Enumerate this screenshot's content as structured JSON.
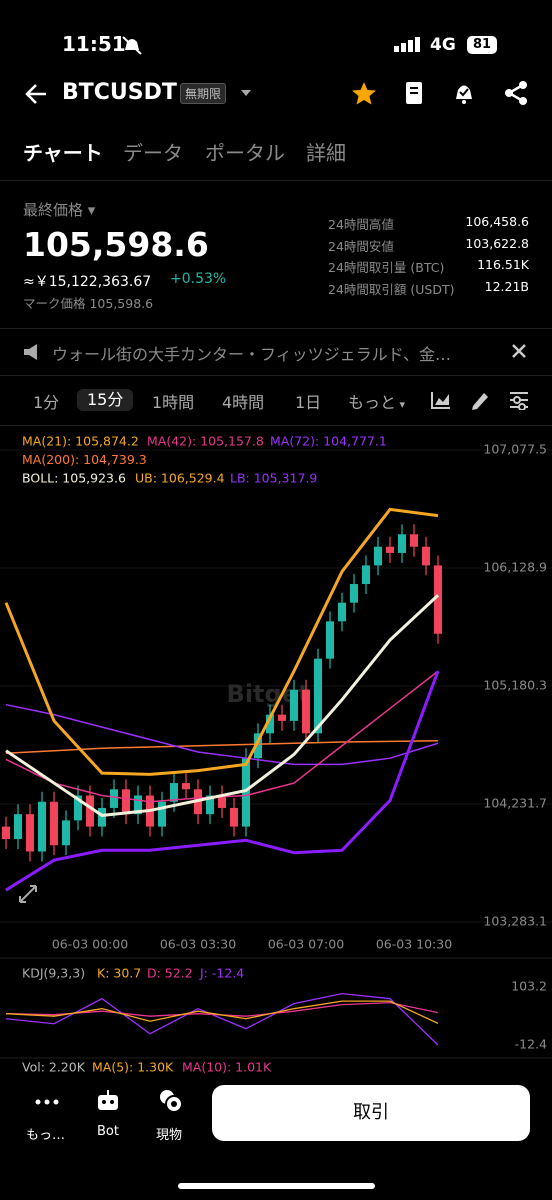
{
  "status": {
    "time": "11:51",
    "network": "4G",
    "battery": "81"
  },
  "header": {
    "symbol": "BTCUSDT",
    "badge": "無期限"
  },
  "tabs": [
    "チャート",
    "データ",
    "ポータル",
    "詳細"
  ],
  "price": {
    "label": "最終価格",
    "last": "105,598.6",
    "cny": "≈￥15,122,363.67",
    "change": "+0.53%",
    "mark": "マーク価格 105,598.6"
  },
  "stats": [
    {
      "label": "24時間高値",
      "value": "106,458.6"
    },
    {
      "label": "24時間安値",
      "value": "103,622.8"
    },
    {
      "label": "24時間取引量 (BTC)",
      "value": "116.51K"
    },
    {
      "label": "24時間取引額 (USDT)",
      "value": "12.21B"
    }
  ],
  "news": "ウォール街の大手カンター・フィッツジェラルド、金…",
  "intervals": [
    "1分",
    "15分",
    "1時間",
    "4時間",
    "1日",
    "もっと"
  ],
  "legend": [
    {
      "text": "MA(21): 105,874.2",
      "color": "#f5a623"
    },
    {
      "text": "MA(42): 105,157.8",
      "color": "#e8368f"
    },
    {
      "text": "MA(72): 104,777.1",
      "color": "#9b30ff"
    },
    {
      "text": "MA(200): 104,739.3",
      "color": "#ff7a30"
    },
    {
      "text": "BOLL: 105,923.6",
      "color": "#f3f0dc"
    },
    {
      "text": "UB: 106,529.4",
      "color": "#f5a623"
    },
    {
      "text": "LB: 105,317.9",
      "color": "#9b30ff"
    }
  ],
  "watermark": "Bitget",
  "chart_data": {
    "type": "candlestick",
    "categories": [
      null,
      null,
      null,
      null,
      null,
      null,
      null,
      "06-03 00:00",
      null,
      null,
      null,
      null,
      null,
      null,
      null,
      null,
      "06-03 03:30",
      null,
      null,
      null,
      null,
      null,
      null,
      null,
      null,
      "06-03 07:00",
      null,
      null,
      null,
      null,
      null,
      null,
      null,
      null,
      "06-03 10:30",
      null,
      null
    ],
    "open": [
      104050,
      103950,
      104150,
      103850,
      104250,
      103900,
      104100,
      104300,
      104050,
      104200,
      104350,
      104150,
      104300,
      104050,
      104250,
      104400,
      104350,
      104150,
      104300,
      104200,
      104050,
      104600,
      104800,
      104950,
      104900,
      105150,
      104800,
      105400,
      105700,
      105850,
      106000,
      106150,
      106300,
      106250,
      106400,
      106300,
      106150
    ],
    "high": [
      104130,
      104230,
      104230,
      104330,
      104330,
      104180,
      104380,
      104380,
      104280,
      104430,
      104430,
      104380,
      104380,
      104330,
      104480,
      104480,
      104430,
      104380,
      104380,
      104280,
      104680,
      104880,
      105030,
      105030,
      105230,
      105230,
      105480,
      105780,
      105930,
      106080,
      106230,
      106380,
      106380,
      106480,
      106480,
      106380,
      106230
    ],
    "low": [
      103870,
      103870,
      103770,
      103770,
      103820,
      103820,
      104020,
      103970,
      103970,
      104120,
      104070,
      104070,
      103970,
      103970,
      104170,
      104270,
      104070,
      104070,
      104120,
      103970,
      103970,
      104520,
      104720,
      104820,
      104820,
      104720,
      104720,
      105320,
      105620,
      105770,
      105920,
      106070,
      106170,
      106170,
      106220,
      106070,
      105520
    ],
    "close": [
      103950,
      104150,
      103850,
      104250,
      103900,
      104100,
      104300,
      104050,
      104200,
      104350,
      104150,
      104300,
      104050,
      104250,
      104400,
      104350,
      104150,
      104300,
      104200,
      104050,
      104600,
      104800,
      104950,
      104900,
      105150,
      104800,
      105400,
      105700,
      105850,
      106000,
      106150,
      106300,
      106250,
      106400,
      106300,
      106150,
      105600
    ],
    "up_color": "#1fb8a8",
    "down_color": "#f0445a",
    "lines": [
      {
        "color": "#ff7a30",
        "x": [
          0,
          4,
          8,
          12,
          16,
          20,
          24,
          28,
          32,
          36
        ],
        "values": [
          104640,
          104660,
          104680,
          104690,
          104700,
          104710,
          104720,
          104730,
          104735,
          104740
        ]
      },
      {
        "color": "#9b30ff",
        "x": [
          0,
          4,
          8,
          12,
          16,
          20,
          24,
          28,
          32,
          36
        ],
        "values": [
          105030,
          104950,
          104850,
          104750,
          104650,
          104600,
          104550,
          104550,
          104600,
          104720
        ]
      },
      {
        "color": "#e8368f",
        "x": [
          0,
          4,
          8,
          12,
          16,
          20,
          24,
          28,
          32,
          36
        ],
        "values": [
          104590,
          104400,
          104300,
          104250,
          104280,
          104300,
          104400,
          104700,
          105000,
          105300
        ]
      },
      {
        "color": "#8a1cff",
        "x": [
          0,
          4,
          8,
          12,
          16,
          20,
          24,
          28,
          32,
          36
        ],
        "values": [
          103540,
          103780,
          103860,
          103860,
          103900,
          103940,
          103840,
          103860,
          104260,
          105300
        ]
      },
      {
        "color": "#f5a623",
        "x": [
          0,
          4,
          8,
          12,
          16,
          20,
          24,
          28,
          32,
          36
        ],
        "values": [
          105850,
          104900,
          104480,
          104470,
          104500,
          104550,
          105300,
          106100,
          106600,
          106550
        ]
      },
      {
        "color": "#f3f0dc",
        "x": [
          0,
          4,
          8,
          12,
          16,
          20,
          24,
          28,
          32,
          36
        ],
        "values": [
          104660,
          104400,
          104140,
          104180,
          104260,
          104340,
          104630,
          105070,
          105550,
          105910
        ]
      }
    ],
    "ylim": [
      103283.1,
      107077.5
    ],
    "yticks": [
      {
        "value": 103283.1,
        "label": "103,283.1"
      },
      {
        "value": 104231.7,
        "label": "104,231.7"
      },
      {
        "value": 105180.3,
        "label": "105,180.3"
      },
      {
        "value": 106128.9,
        "label": "106,128.9"
      },
      {
        "value": 107077.5,
        "label": "107,077.5"
      }
    ]
  },
  "kdj": {
    "type": "line",
    "title": "KDJ(9,3,3)",
    "labels": [
      {
        "text": "K: 30.7",
        "color": "#f5a623"
      },
      {
        "text": "D: 52.2",
        "color": "#e8368f"
      },
      {
        "text": "J: -12.4",
        "color": "#9b30ff"
      }
    ],
    "x": [
      0,
      4,
      8,
      12,
      16,
      20,
      24,
      28,
      32,
      36
    ],
    "series": [
      {
        "color": "#9b30ff",
        "values": [
          40,
          30,
          80,
          10,
          60,
          20,
          70,
          90,
          80,
          -12.4
        ]
      },
      {
        "color": "#e8368f",
        "values": [
          50,
          48,
          55,
          45,
          50,
          45,
          55,
          68,
          72,
          52.2
        ]
      },
      {
        "color": "#f5a623",
        "values": [
          50,
          45,
          60,
          35,
          55,
          40,
          60,
          75,
          75,
          30.7
        ]
      }
    ],
    "ylim": [
      -12.4,
      103.2
    ],
    "yticks": [
      -12.4,
      103.2
    ]
  },
  "vol": [
    {
      "text": "Vol: 2.20K",
      "color": "#bbbbbb"
    },
    {
      "text": "MA(5): 1.30K",
      "color": "#f5a623"
    },
    {
      "text": "MA(10): 1.01K",
      "color": "#e8368f"
    }
  ],
  "nav": [
    "もっ…",
    "Bot",
    "現物"
  ],
  "trade": "取引"
}
